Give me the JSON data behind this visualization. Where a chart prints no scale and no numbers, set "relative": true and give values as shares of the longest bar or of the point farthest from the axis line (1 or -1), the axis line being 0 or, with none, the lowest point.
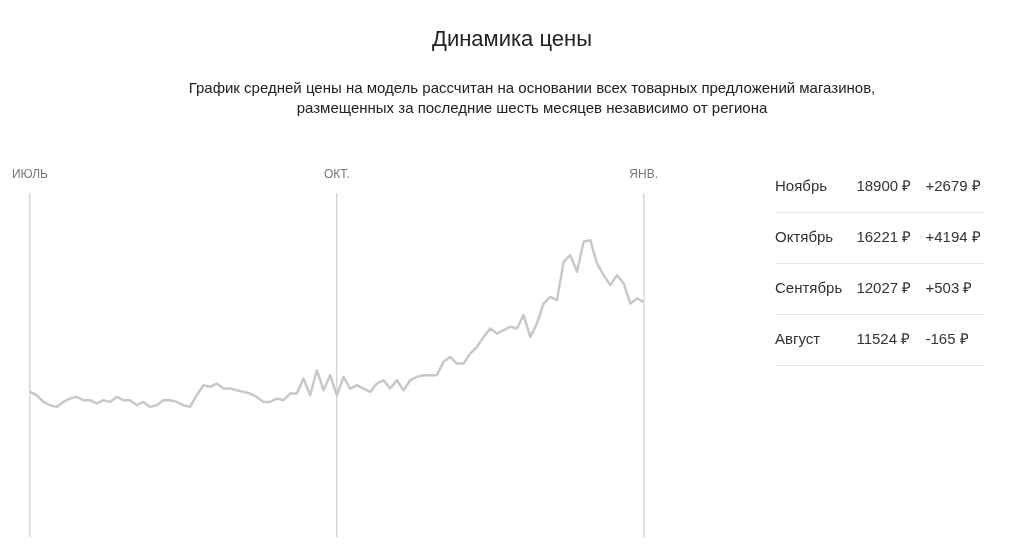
{
  "chart_data": [
    {
      "type": "line",
      "title": "Динамика цены",
      "subtitle": "График средней цены на модель рассчитан на основании всех товарных предложений магазинов, размещенных за последние шесть месяцев независимо от региона",
      "relative": true,
      "grid": "x",
      "legend": false,
      "categories": [
        "ИЮЛЬ",
        null,
        null,
        null,
        null,
        null,
        null,
        null,
        null,
        null,
        null,
        null,
        null,
        null,
        null,
        null,
        null,
        null,
        null,
        null,
        null,
        null,
        null,
        null,
        null,
        null,
        null,
        null,
        null,
        null,
        null,
        null,
        null,
        null,
        null,
        null,
        null,
        null,
        null,
        null,
        null,
        null,
        null,
        null,
        null,
        null,
        "ОКТ.",
        null,
        null,
        null,
        null,
        null,
        null,
        null,
        null,
        null,
        null,
        null,
        null,
        null,
        null,
        null,
        null,
        null,
        null,
        null,
        null,
        null,
        null,
        null,
        null,
        null,
        null,
        null,
        null,
        null,
        null,
        null,
        null,
        null,
        null,
        null,
        null,
        null,
        null,
        null,
        null,
        null,
        null,
        null,
        null,
        null,
        "ЯНВ."
      ],
      "series": [
        {
          "color": "#c8c8c8",
          "values": [
            0.09,
            0.07,
            0.03,
            0.01,
            0,
            0.03,
            0.05,
            0.06,
            0.04,
            0.04,
            0.02,
            0.04,
            0.03,
            0.06,
            0.04,
            0.04,
            0.01,
            0.03,
            0,
            0.01,
            0.04,
            0.04,
            0.03,
            0.01,
            0,
            0.07,
            0.13,
            0.12,
            0.14,
            0.11,
            0.11,
            0.1,
            0.09,
            0.08,
            0.06,
            0.03,
            0.03,
            0.05,
            0.04,
            0.08,
            0.08,
            0.17,
            0.07,
            0.22,
            0.1,
            0.19,
            0.07,
            0.18,
            0.11,
            0.13,
            0.11,
            0.09,
            0.14,
            0.16,
            0.11,
            0.16,
            0.1,
            0.16,
            0.18,
            0.19,
            0.19,
            0.19,
            0.27,
            0.3,
            0.26,
            0.26,
            0.32,
            0.36,
            0.42,
            0.47,
            0.44,
            0.46,
            0.48,
            0.47,
            0.55,
            0.42,
            0.5,
            0.62,
            0.66,
            0.64,
            0.87,
            0.91,
            0.81,
            0.99,
            1,
            0.86,
            0.79,
            0.73,
            0.79,
            0.74,
            0.62,
            0.65,
            0.63
          ]
        }
      ]
    },
    {
      "type": "other",
      "annotations": [
        "Ноябрь",
        "18900 ₽",
        "+2679 ₽",
        "Октябрь",
        "16221 ₽",
        "+4194 ₽",
        "Сентябрь",
        "12027 ₽",
        "+503 ₽",
        "Август",
        "11524 ₽",
        "-165 ₽"
      ]
    }
  ]
}
